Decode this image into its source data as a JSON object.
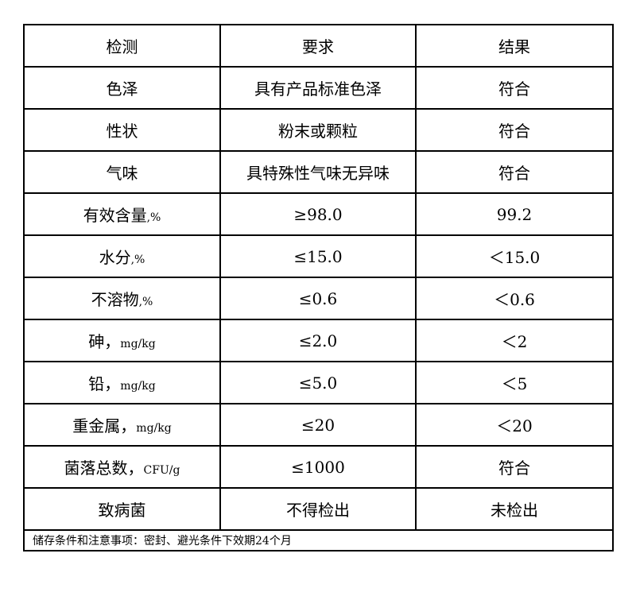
{
  "header": [
    "检测",
    "要求",
    "结果"
  ],
  "rows": [
    {
      "item": "色泽",
      "unit": "",
      "requirement": "具有产品标准色泽",
      "result": "符合"
    },
    {
      "item": "性状",
      "unit": "",
      "requirement": "粉末或颗粒",
      "result": "符合"
    },
    {
      "item": "气味",
      "unit": "",
      "requirement": "具特殊性气味无异味",
      "result": "符合"
    },
    {
      "item": "有效含量",
      "unit": ",%",
      "requirement": "≥98.0",
      "result": "99.2"
    },
    {
      "item": "水分",
      "unit": ",%",
      "requirement": "≤15.0",
      "result": "＜15.0"
    },
    {
      "item": "不溶物",
      "unit": ",%",
      "requirement": "≤0.6",
      "result": "＜0.6"
    },
    {
      "item": "砷，",
      "unit": "mg/kg",
      "requirement": "≤2.0",
      "result": "＜2"
    },
    {
      "item": "铅，",
      "unit": "mg/kg",
      "requirement": "≤5.0",
      "result": "＜5"
    },
    {
      "item": "重金属，",
      "unit": "mg/kg",
      "requirement": "≤20",
      "result": "＜20"
    },
    {
      "item": "菌落总数，",
      "unit": "CFU/g",
      "requirement": "≤1000",
      "result": "符合"
    },
    {
      "item": "致病菌",
      "unit": "",
      "requirement": "不得检出",
      "result": "未检出"
    }
  ],
  "footer": "储存条件和注意事项：密封、避光条件下效期24个月"
}
